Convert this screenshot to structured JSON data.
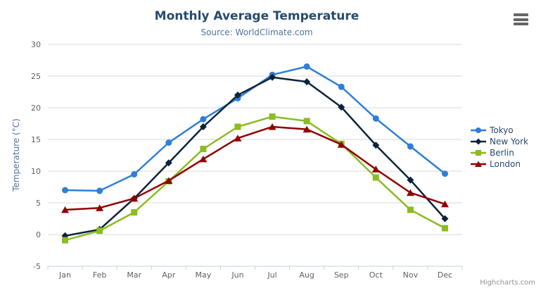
{
  "chart_data": {
    "type": "line",
    "title": "Monthly Average Temperature",
    "subtitle": "Source: WorldClimate.com",
    "xlabel": "",
    "ylabel": "Temperature (°C)",
    "ylim": [
      -5,
      30
    ],
    "ytick_step": 5,
    "grid": true,
    "legend_position": "right",
    "categories": [
      "Jan",
      "Feb",
      "Mar",
      "Apr",
      "May",
      "Jun",
      "Jul",
      "Aug",
      "Sep",
      "Oct",
      "Nov",
      "Dec"
    ],
    "series": [
      {
        "name": "Tokyo",
        "color": "#2f7ed8",
        "marker": "circle",
        "values": [
          7.0,
          6.9,
          9.5,
          14.5,
          18.2,
          21.5,
          25.2,
          26.5,
          23.3,
          18.3,
          13.9,
          9.6
        ]
      },
      {
        "name": "New York",
        "color": "#0d233a",
        "marker": "diamond",
        "values": [
          -0.2,
          0.8,
          5.7,
          11.3,
          17.0,
          22.0,
          24.8,
          24.1,
          20.1,
          14.1,
          8.6,
          2.5
        ]
      },
      {
        "name": "Berlin",
        "color": "#8bbc21",
        "marker": "square",
        "values": [
          -0.9,
          0.6,
          3.5,
          8.4,
          13.5,
          17.0,
          18.6,
          17.9,
          14.3,
          9.0,
          3.9,
          1.0
        ]
      },
      {
        "name": "London",
        "color": "#910000",
        "marker": "triangle",
        "values": [
          3.9,
          4.2,
          5.7,
          8.5,
          11.9,
          15.2,
          17.0,
          16.6,
          14.2,
          10.3,
          6.6,
          4.8
        ]
      }
    ]
  },
  "credits": {
    "label": "Highcharts.com"
  },
  "menu": {
    "icon": "hamburger-export-menu"
  },
  "colors": {
    "title": "#274b6d",
    "subtitle": "#4d759e",
    "axis_title": "#4d759e",
    "tick_label": "#606060",
    "grid": "#d8d8d8",
    "axis_line": "#c0d0e0",
    "legend_text": "#274b6d",
    "credits": "#909090",
    "menu_icon": "#666666",
    "background": "#ffffff"
  }
}
